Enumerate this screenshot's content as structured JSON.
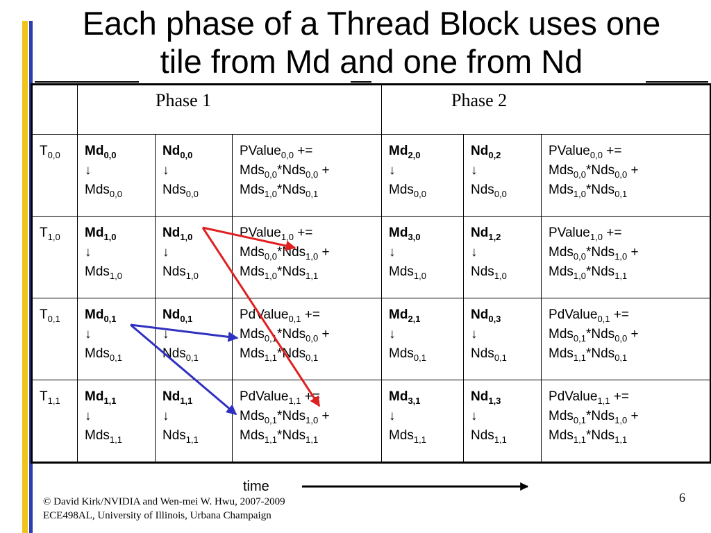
{
  "slide": {
    "title_line1": "Each phase of a Thread Block uses one",
    "title_line2": "tile from Md and one from Nd",
    "phase1_label": "Phase 1",
    "phase2_label": "Phase 2",
    "time_label": "time",
    "footer_line1": "© David Kirk/NVIDIA and Wen-mei W. Hwu, 2007-2009",
    "footer_line2": "ECE498AL, University of Illinois, Urbana Champaign",
    "page_number": "6"
  },
  "colors": {
    "accent_yellow": "#f0c419",
    "accent_blue": "#2c3eb0",
    "arrow_red": "#e02020",
    "arrow_blue": "#3030c0"
  },
  "rows": [
    {
      "thread": "T",
      "thread_sub": "0,0",
      "md1": "Md",
      "md1_sub": "0,0",
      "mds1_sub": "0,0",
      "nd1": "Nd",
      "nd1_sub": "0,0",
      "nds1_sub": "0,0",
      "pv1_name": "PValue",
      "pv1_sub": "0,0",
      "pv1_a": "0,0",
      "pv1_b": "0,0",
      "pv1_c": "1,0",
      "pv1_d": "0,1",
      "md2": "Md",
      "md2_sub": "2,0",
      "mds2_sub": "0,0",
      "nd2": "Nd",
      "nd2_sub": "0,2",
      "nds2_sub": "0,0",
      "pv2_name": "PValue",
      "pv2_sub": "0,0",
      "pv2_a": "0,0",
      "pv2_b": "0,0",
      "pv2_c": "1,0",
      "pv2_d": "0,1"
    },
    {
      "thread": "T",
      "thread_sub": "1,0",
      "md1": "Md",
      "md1_sub": "1,0",
      "mds1_sub": "1,0",
      "nd1": "Nd",
      "nd1_sub": "1,0",
      "nds1_sub": "1,0",
      "pv1_name": "PValue",
      "pv1_sub": "1,0",
      "pv1_a": "0,0",
      "pv1_b": "1,0",
      "pv1_c": "1,0",
      "pv1_d": "1,1",
      "md2": "Md",
      "md2_sub": "3,0",
      "mds2_sub": "1,0",
      "nd2": "Nd",
      "nd2_sub": "1,2",
      "nds2_sub": "1,0",
      "pv2_name": "PValue",
      "pv2_sub": "1,0",
      "pv2_a": "0,0",
      "pv2_b": "1,0",
      "pv2_c": "1,0",
      "pv2_d": "1,1"
    },
    {
      "thread": "T",
      "thread_sub": "0,1",
      "md1": "Md",
      "md1_sub": "0,1",
      "mds1_sub": "0,1",
      "nd1": "Nd",
      "nd1_sub": "0,1",
      "nds1_sub": "0,1",
      "pv1_name": "PdValue",
      "pv1_sub": "0,1",
      "pv1_a": "0,1",
      "pv1_b": "0,0",
      "pv1_c": "1,1",
      "pv1_d": "0,1",
      "md2": "Md",
      "md2_sub": "2,1",
      "mds2_sub": "0,1",
      "nd2": "Nd",
      "nd2_sub": "0,3",
      "nds2_sub": "0,1",
      "pv2_name": "PdValue",
      "pv2_sub": "0,1",
      "pv2_a": "0,1",
      "pv2_b": "0,0",
      "pv2_c": "1,1",
      "pv2_d": "0,1"
    },
    {
      "thread": "T",
      "thread_sub": "1,1",
      "md1": "Md",
      "md1_sub": "1,1",
      "mds1_sub": "1,1",
      "nd1": "Nd",
      "nd1_sub": "1,1",
      "nds1_sub": "1,1",
      "pv1_name": "PdValue",
      "pv1_sub": "1,1",
      "pv1_a": "0,1",
      "pv1_b": "1,0",
      "pv1_c": "1,1",
      "pv1_d": "1,1",
      "md2": "Md",
      "md2_sub": "3,1",
      "mds2_sub": "1,1",
      "nd2": "Nd",
      "nd2_sub": "1,3",
      "nds2_sub": "1,1",
      "pv2_name": "PdValue",
      "pv2_sub": "1,1",
      "pv2_a": "0,1",
      "pv2_b": "1,0",
      "pv2_c": "1,1",
      "pv2_d": "1,1"
    }
  ]
}
